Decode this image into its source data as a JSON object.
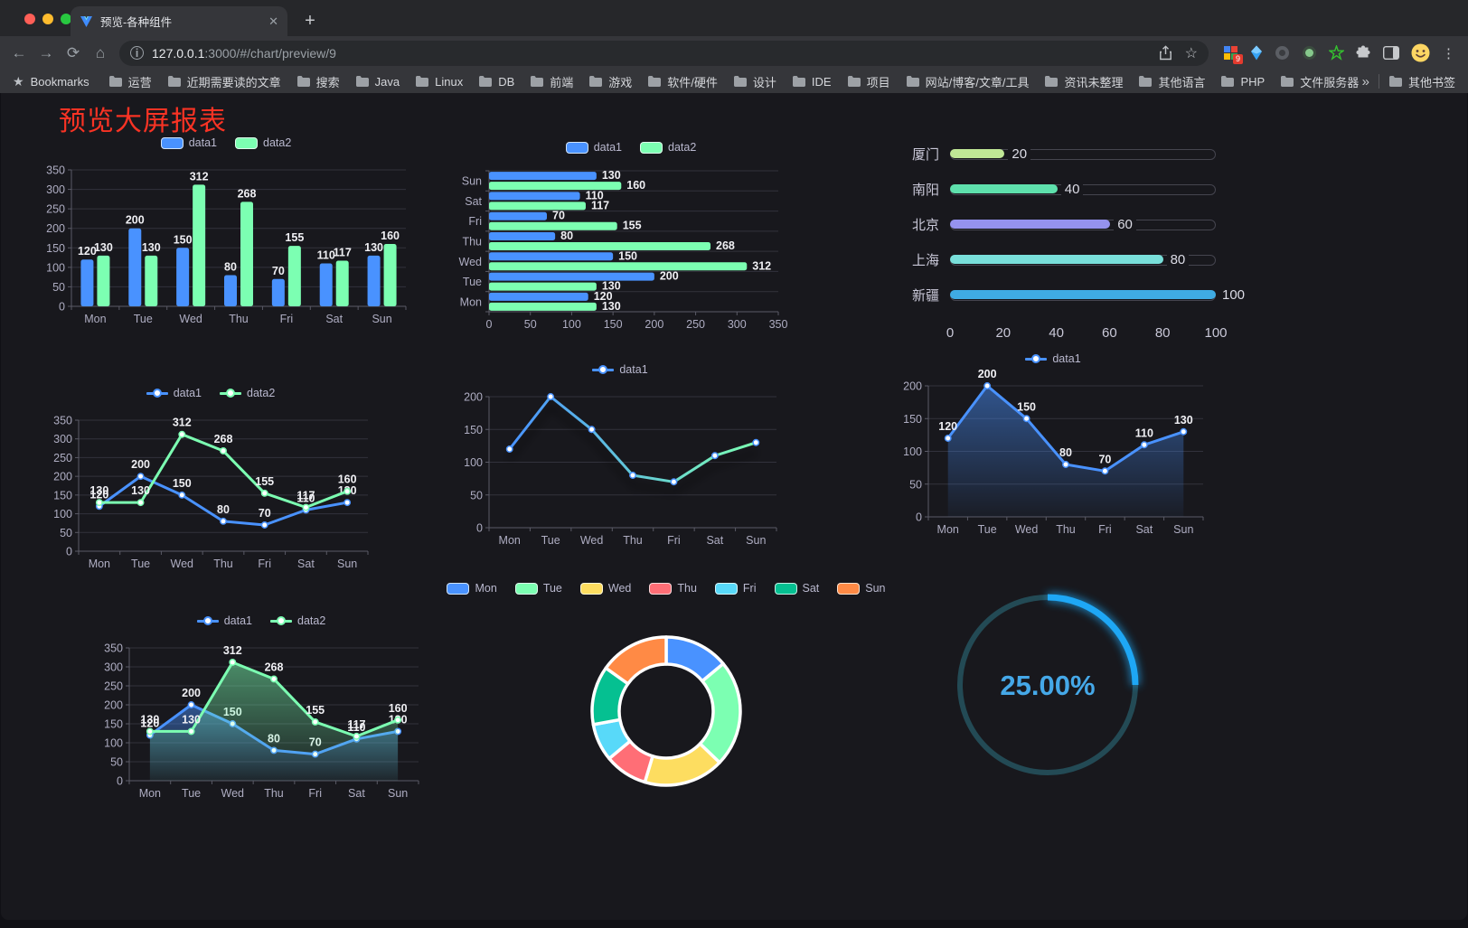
{
  "browser": {
    "tab_title": "预览-各种组件",
    "url_host": "127.0.0.1",
    "url_rest": ":3000/#/chart/preview/9",
    "new_tab_glyph": "+",
    "close_glyph": "✕",
    "bookmarks_label": "Bookmarks",
    "bookmarks": [
      "运营",
      "近期需要读的文章",
      "搜索",
      "Java",
      "Linux",
      "DB",
      "前端",
      "游戏",
      "软件/硬件",
      "设计",
      "IDE",
      "项目",
      "网站/博客/文章/工具",
      "资讯未整理",
      "其他语言",
      "PHP",
      "文件服务器"
    ],
    "overflow_chevron": "»",
    "other_bookmarks": "其他书签",
    "extension_badge": "9"
  },
  "page": {
    "title": "预览大屏报表",
    "title_color": "#f93324"
  },
  "chart_data": [
    {
      "id": "bar1",
      "type": "bar",
      "categories": [
        "Mon",
        "Tue",
        "Wed",
        "Thu",
        "Fri",
        "Sat",
        "Sun"
      ],
      "series": [
        {
          "name": "data1",
          "color": "#4992ff",
          "values": [
            120,
            200,
            150,
            80,
            70,
            110,
            130
          ]
        },
        {
          "name": "data2",
          "color": "#7cffb2",
          "values": [
            130,
            130,
            312,
            268,
            155,
            117,
            160
          ]
        }
      ],
      "legend": [
        "data1",
        "data2"
      ],
      "ylim": [
        0,
        350
      ],
      "ystep": 50,
      "yticks": [
        0,
        50,
        100,
        150,
        200,
        250,
        300,
        350
      ],
      "grid": true,
      "legend_position": "top"
    },
    {
      "id": "hbar1",
      "type": "hbar",
      "categories": [
        "Mon",
        "Tue",
        "Wed",
        "Thu",
        "Fri",
        "Sat",
        "Sun"
      ],
      "categories_top_to_bottom": [
        "Sun",
        "Sat",
        "Fri",
        "Thu",
        "Wed",
        "Tue",
        "Mon"
      ],
      "series": [
        {
          "name": "data1",
          "color": "#4992ff",
          "values": [
            120,
            200,
            150,
            80,
            70,
            110,
            130
          ]
        },
        {
          "name": "data2",
          "color": "#7cffb2",
          "values": [
            130,
            130,
            312,
            268,
            155,
            117,
            160
          ]
        }
      ],
      "legend": [
        "data1",
        "data2"
      ],
      "xlim": [
        0,
        350
      ],
      "xstep": 50,
      "xticks": [
        0,
        50,
        100,
        150,
        200,
        250,
        300,
        350
      ],
      "grid": true,
      "legend_position": "top"
    },
    {
      "id": "progress1",
      "type": "progress-list",
      "items": [
        {
          "label": "厦门",
          "value": 20,
          "color": "#c0e796"
        },
        {
          "label": "南阳",
          "value": 40,
          "color": "#5ee0ac"
        },
        {
          "label": "北京",
          "value": 60,
          "color": "#9592ee"
        },
        {
          "label": "上海",
          "value": 80,
          "color": "#79dfda"
        },
        {
          "label": "新疆",
          "value": 100,
          "color": "#3fabe3"
        }
      ],
      "max": 100,
      "axis_ticks": [
        0,
        20,
        40,
        60,
        80,
        100
      ]
    },
    {
      "id": "line-two",
      "type": "line",
      "categories": [
        "Mon",
        "Tue",
        "Wed",
        "Thu",
        "Fri",
        "Sat",
        "Sun"
      ],
      "series": [
        {
          "name": "data1",
          "color": "#4992ff",
          "values": [
            120,
            200,
            150,
            80,
            70,
            110,
            130
          ]
        },
        {
          "name": "data2",
          "color": "#7cffb2",
          "values": [
            130,
            130,
            312,
            268,
            155,
            117,
            160
          ]
        }
      ],
      "legend": [
        "data1",
        "data2"
      ],
      "ylim": [
        0,
        350
      ],
      "ystep": 50,
      "labels": true,
      "grid": true,
      "legend_position": "top"
    },
    {
      "id": "line-gradient",
      "type": "line",
      "categories": [
        "Mon",
        "Tue",
        "Wed",
        "Thu",
        "Fri",
        "Sat",
        "Sun"
      ],
      "series": [
        {
          "name": "data1",
          "color": "#4992ff",
          "values": [
            120,
            200,
            150,
            80,
            70,
            110,
            130
          ]
        }
      ],
      "legend": [
        "data1"
      ],
      "gradient_stroke": [
        "#4992ff",
        "#7cffb2"
      ],
      "shadow": true,
      "ylim": [
        0,
        200
      ],
      "ystep": 50,
      "labels": false,
      "grid": true,
      "legend_position": "top"
    },
    {
      "id": "line-area",
      "type": "line",
      "categories": [
        "Mon",
        "Tue",
        "Wed",
        "Thu",
        "Fri",
        "Sat",
        "Sun"
      ],
      "series": [
        {
          "name": "data1",
          "color": "#4992ff",
          "values": [
            120,
            200,
            150,
            80,
            70,
            110,
            130
          ],
          "fill": true
        }
      ],
      "legend": [
        "data1"
      ],
      "ylim": [
        0,
        200
      ],
      "ystep": 50,
      "labels": true,
      "grid": true,
      "legend_position": "top"
    },
    {
      "id": "line-two-area",
      "type": "line",
      "categories": [
        "Mon",
        "Tue",
        "Wed",
        "Thu",
        "Fri",
        "Sat",
        "Sun"
      ],
      "series": [
        {
          "name": "data1",
          "color": "#4992ff",
          "values": [
            120,
            200,
            150,
            80,
            70,
            110,
            130
          ],
          "fill": true
        },
        {
          "name": "data2",
          "color": "#7cffb2",
          "values": [
            130,
            130,
            312,
            268,
            155,
            117,
            160
          ],
          "fill": true
        }
      ],
      "legend": [
        "data1",
        "data2"
      ],
      "ylim": [
        0,
        350
      ],
      "ystep": 50,
      "labels": true,
      "grid": true,
      "legend_position": "top"
    },
    {
      "id": "donut1",
      "type": "pie",
      "items": [
        {
          "label": "Mon",
          "value": 120,
          "color": "#4992ff"
        },
        {
          "label": "Tue",
          "value": 200,
          "color": "#7cffb2"
        },
        {
          "label": "Wed",
          "value": 150,
          "color": "#fddd60"
        },
        {
          "label": "Thu",
          "value": 80,
          "color": "#ff6e76"
        },
        {
          "label": "Fri",
          "value": 70,
          "color": "#58d9f9"
        },
        {
          "label": "Sat",
          "value": 110,
          "color": "#05c091"
        },
        {
          "label": "Sun",
          "value": 130,
          "color": "#ff8a45"
        }
      ],
      "inner_radius": 52,
      "outer_radius": 82,
      "border_color": "#ffffff",
      "legend_position": "top"
    },
    {
      "id": "gauge1",
      "type": "gauge",
      "value": 25,
      "label": "25.00%",
      "arc_color": "#1ea7f5",
      "track_color": "#234a55",
      "text_color": "#45a8e8"
    }
  ]
}
